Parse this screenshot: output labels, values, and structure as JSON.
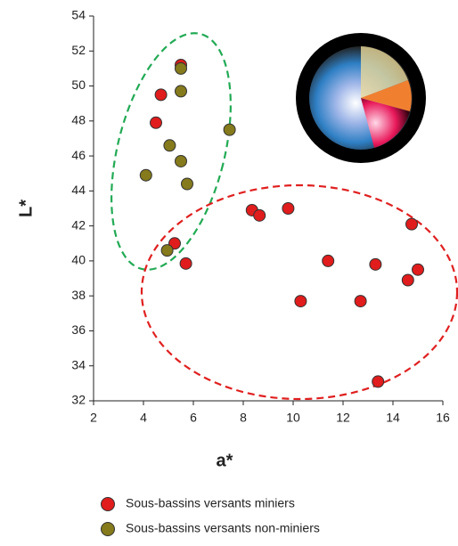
{
  "chart_data": {
    "type": "scatter",
    "x_label": "a*",
    "y_label": "L*",
    "xlim": [
      2,
      16
    ],
    "xticks": [
      2,
      4,
      6,
      8,
      10,
      12,
      14,
      16
    ],
    "ylim": [
      32,
      54
    ],
    "yticks": [
      32,
      34,
      36,
      38,
      40,
      42,
      44,
      46,
      48,
      50,
      52,
      54
    ],
    "series": [
      {
        "name": "Sous-bassins versants miniers",
        "color": "#e01c1c",
        "x": [
          5.5,
          4.7,
          4.5,
          5.25,
          5.7,
          8.35,
          8.65,
          9.8,
          11.4,
          10.3,
          12.7,
          13.3,
          13.4,
          14.6,
          14.75,
          15.0
        ],
        "values": [
          51.2,
          49.5,
          47.9,
          41.0,
          39.85,
          42.9,
          42.6,
          43.0,
          40.0,
          37.7,
          37.7,
          39.8,
          33.1,
          38.9,
          42.1,
          39.5
        ]
      },
      {
        "name": "Sous-bassins versants non-miniers",
        "color": "#857a1c",
        "x": [
          5.5,
          5.5,
          7.45,
          5.05,
          5.5,
          5.75,
          4.1,
          4.95
        ],
        "values": [
          51.0,
          49.7,
          47.5,
          46.6,
          45.7,
          44.4,
          44.9,
          40.6
        ]
      }
    ]
  }
}
